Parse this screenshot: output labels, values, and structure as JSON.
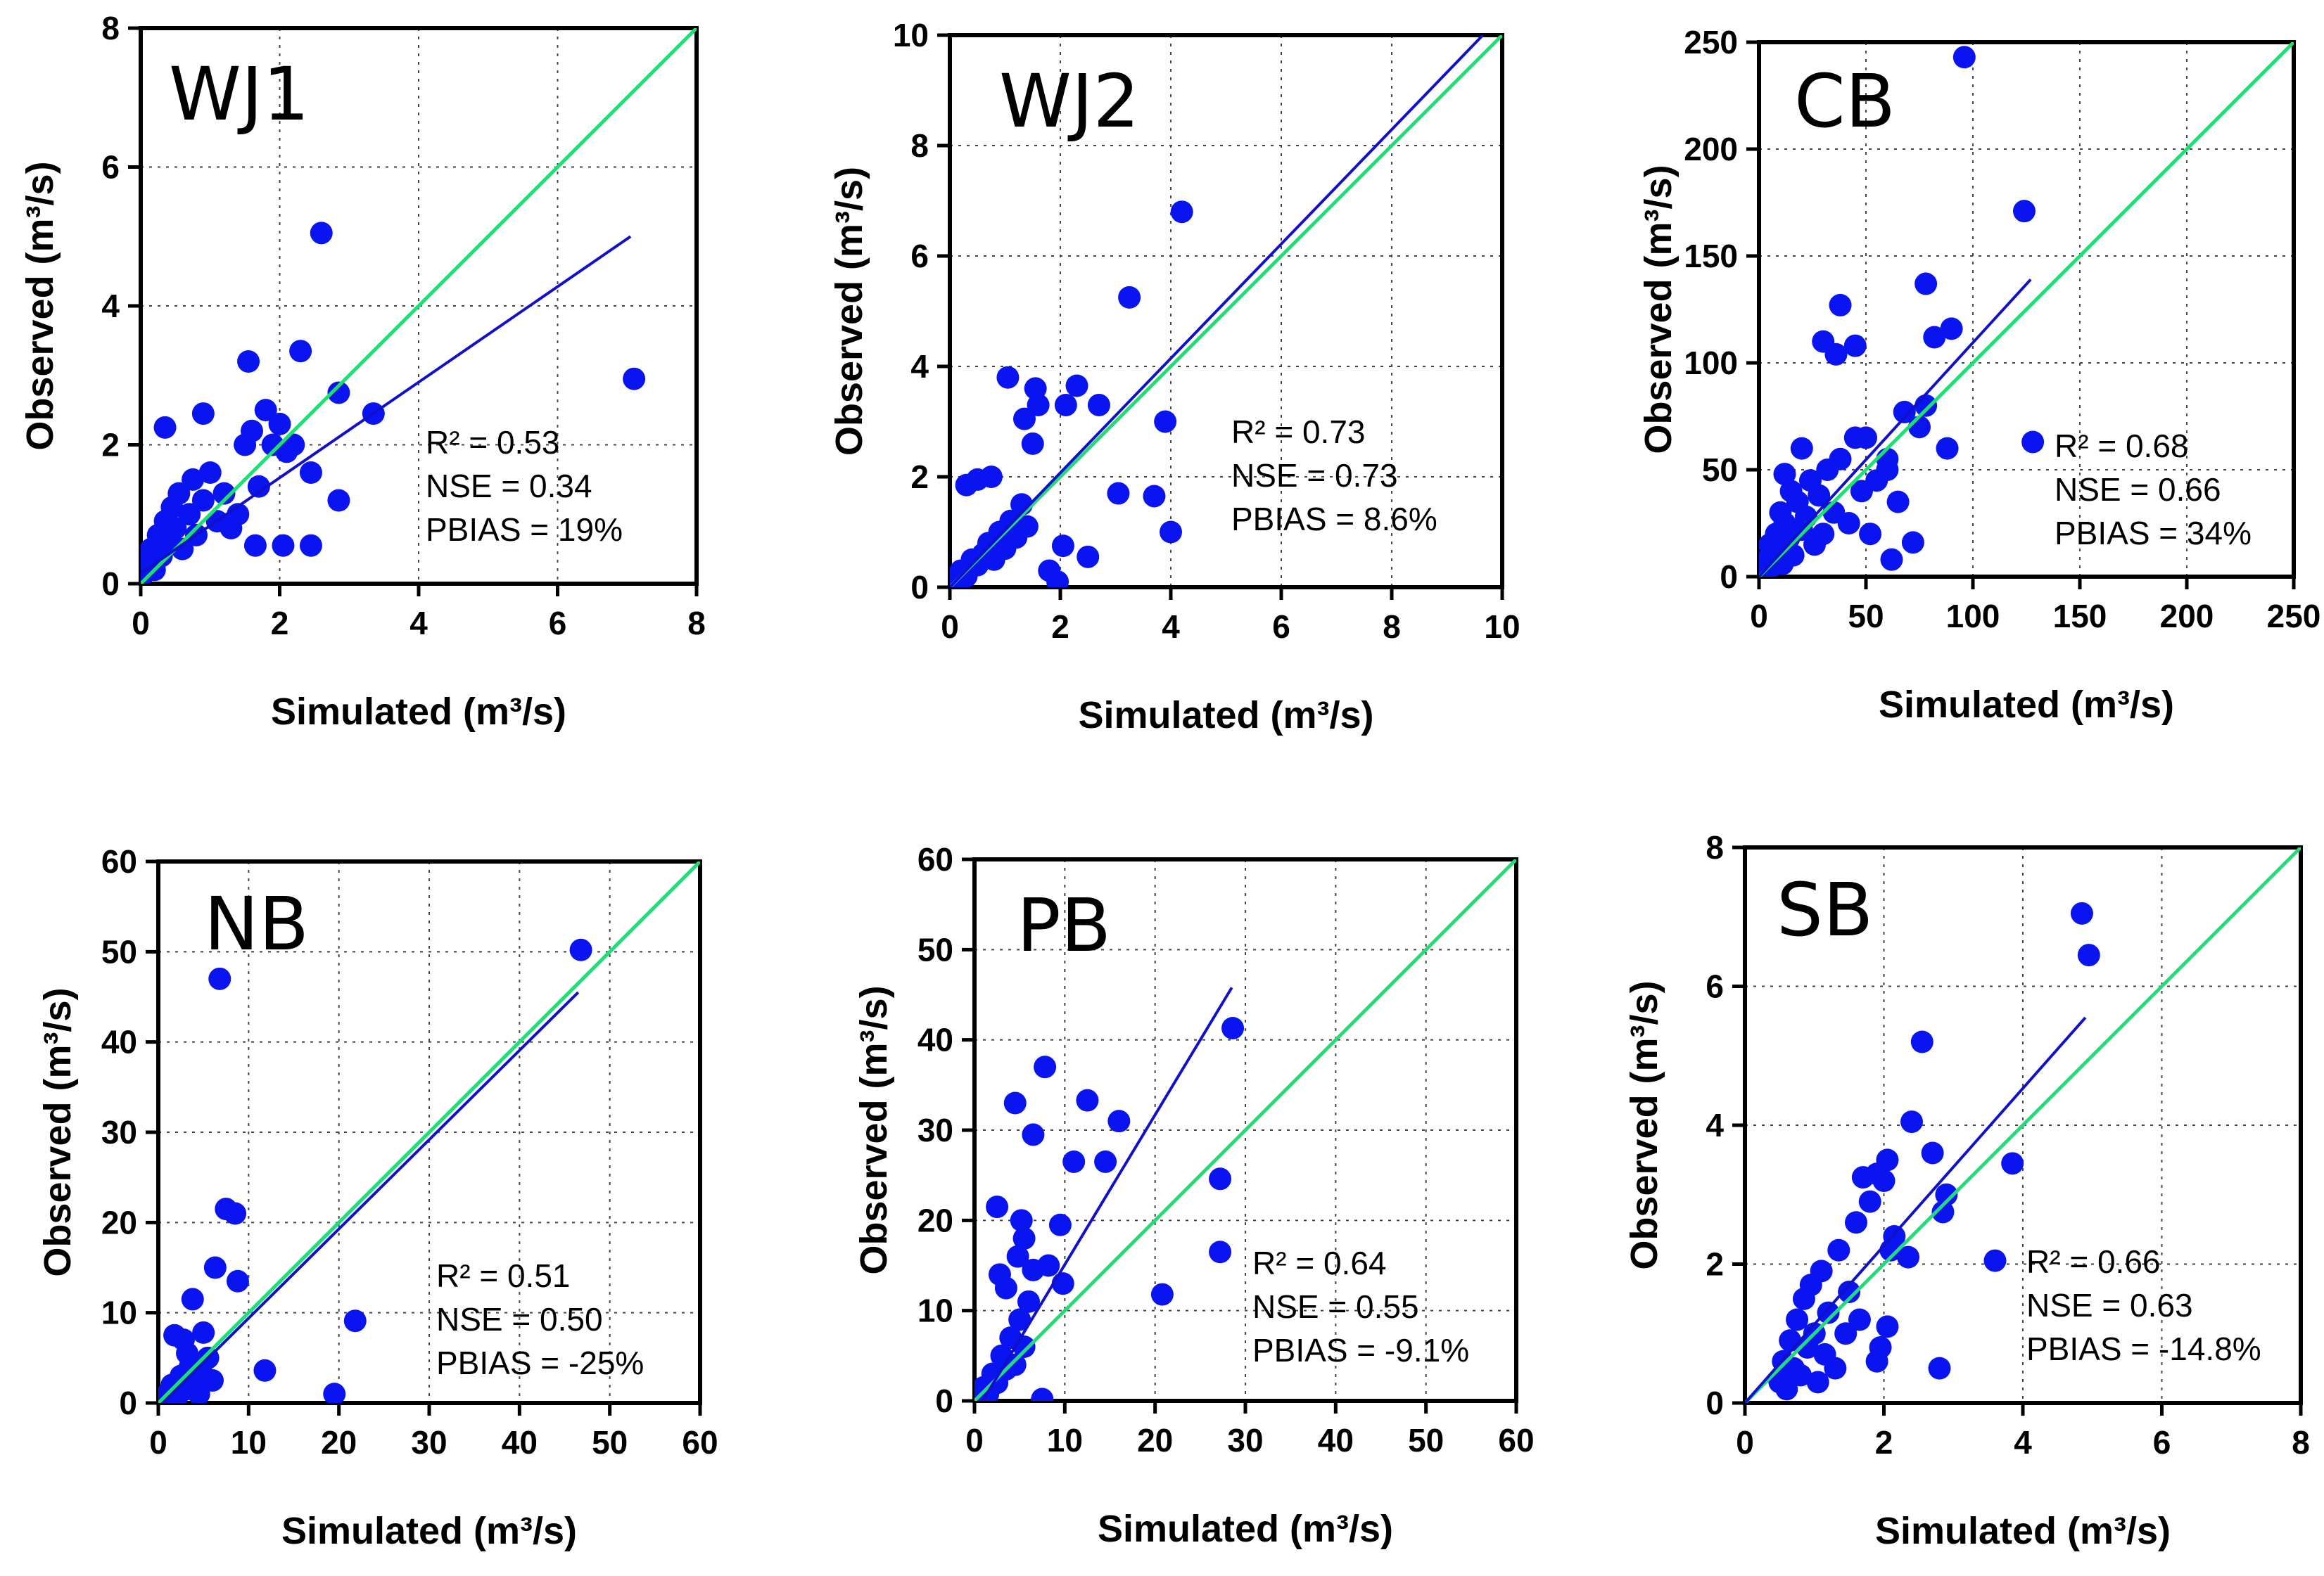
{
  "chart_data": [
    {
      "type": "scatter",
      "title": "WJ1",
      "xlabel": "Simulated (m³/s)",
      "ylabel": "Observed (m³/s)",
      "xlim": [
        0,
        8
      ],
      "ylim": [
        0,
        8
      ],
      "xticks": [
        "0",
        "2",
        "4",
        "6",
        "8"
      ],
      "yticks": [
        "0",
        "2",
        "4",
        "6",
        "8"
      ],
      "grid": true,
      "stats": {
        "r2": "R² = 0.53",
        "nse": "NSE = 0.34",
        "pbias": "PBIAS = 19%"
      },
      "regression_line": [
        [
          0,
          0.15
        ],
        [
          7.05,
          5.0
        ]
      ],
      "one_to_one_line": [
        [
          0,
          0
        ],
        [
          8,
          8
        ]
      ],
      "points": [
        [
          0.05,
          0.15
        ],
        [
          0.1,
          0.3
        ],
        [
          0.15,
          0.5
        ],
        [
          0.2,
          0.2
        ],
        [
          0.25,
          0.7
        ],
        [
          0.3,
          0.4
        ],
        [
          0.35,
          0.9
        ],
        [
          0.4,
          0.6
        ],
        [
          0.45,
          1.1
        ],
        [
          0.5,
          0.8
        ],
        [
          0.55,
          1.3
        ],
        [
          0.6,
          0.5
        ],
        [
          0.7,
          1.0
        ],
        [
          0.75,
          1.5
        ],
        [
          0.8,
          0.7
        ],
        [
          0.9,
          1.2
        ],
        [
          1.0,
          1.6
        ],
        [
          1.1,
          0.9
        ],
        [
          1.2,
          1.3
        ],
        [
          1.3,
          0.8
        ],
        [
          1.4,
          1.0
        ],
        [
          1.5,
          2.0
        ],
        [
          1.6,
          2.2
        ],
        [
          1.7,
          1.4
        ],
        [
          1.8,
          2.5
        ],
        [
          1.9,
          2.0
        ],
        [
          2.0,
          2.3
        ],
        [
          2.1,
          1.9
        ],
        [
          2.2,
          2.0
        ],
        [
          0.35,
          2.25
        ],
        [
          0.9,
          2.45
        ],
        [
          1.55,
          3.2
        ],
        [
          2.3,
          3.35
        ],
        [
          2.6,
          5.05
        ],
        [
          1.65,
          0.55
        ],
        [
          2.05,
          0.55
        ],
        [
          2.45,
          0.55
        ],
        [
          2.45,
          1.6
        ],
        [
          2.85,
          1.2
        ],
        [
          2.85,
          2.75
        ],
        [
          3.35,
          2.45
        ],
        [
          7.1,
          2.95
        ]
      ]
    },
    {
      "type": "scatter",
      "title": "WJ2",
      "xlabel": "Simulated (m³/s)",
      "ylabel": "Observed (m³/s)",
      "xlim": [
        0,
        10
      ],
      "ylim": [
        0,
        10
      ],
      "xticks": [
        "0",
        "2",
        "4",
        "6",
        "8",
        "10"
      ],
      "yticks": [
        "0",
        "2",
        "4",
        "6",
        "8",
        "10"
      ],
      "grid": true,
      "stats": {
        "r2": "R² = 0.73",
        "nse": "NSE = 0.73",
        "pbias": "PBIAS = 8.6%"
      },
      "regression_line": [
        [
          0,
          0
        ],
        [
          9.65,
          10
        ]
      ],
      "one_to_one_line": [
        [
          0,
          0
        ],
        [
          10,
          10
        ]
      ],
      "points": [
        [
          0.1,
          0.1
        ],
        [
          0.2,
          0.3
        ],
        [
          0.3,
          0.2
        ],
        [
          0.4,
          0.5
        ],
        [
          0.5,
          0.4
        ],
        [
          0.6,
          0.6
        ],
        [
          0.7,
          0.8
        ],
        [
          0.8,
          0.5
        ],
        [
          0.9,
          1.0
        ],
        [
          1.0,
          0.7
        ],
        [
          1.1,
          1.2
        ],
        [
          1.2,
          0.9
        ],
        [
          1.3,
          1.5
        ],
        [
          1.4,
          1.1
        ],
        [
          0.3,
          1.85
        ],
        [
          0.5,
          1.95
        ],
        [
          0.75,
          2.0
        ],
        [
          1.05,
          3.8
        ],
        [
          1.35,
          3.05
        ],
        [
          1.5,
          2.6
        ],
        [
          1.55,
          3.6
        ],
        [
          1.6,
          3.3
        ],
        [
          2.1,
          3.3
        ],
        [
          2.3,
          3.65
        ],
        [
          2.7,
          3.3
        ],
        [
          2.05,
          0.75
        ],
        [
          1.8,
          0.3
        ],
        [
          1.95,
          0.1
        ],
        [
          2.5,
          0.55
        ],
        [
          3.05,
          1.7
        ],
        [
          3.25,
          5.25
        ],
        [
          3.7,
          1.65
        ],
        [
          3.9,
          3.0
        ],
        [
          4.0,
          1.0
        ],
        [
          4.2,
          6.8
        ]
      ]
    },
    {
      "type": "scatter",
      "title": "CB",
      "xlabel": "Simulated (m³/s)",
      "ylabel": "Observed (m³/s)",
      "xlim": [
        0,
        250
      ],
      "ylim": [
        0,
        250
      ],
      "xticks": [
        "0",
        "50",
        "100",
        "150",
        "200",
        "250"
      ],
      "yticks": [
        "0",
        "50",
        "100",
        "150",
        "200",
        "250"
      ],
      "grid": true,
      "stats": {
        "r2": "R² = 0.68",
        "nse": "NSE = 0.66",
        "pbias": "PBIAS = 34%"
      },
      "regression_line": [
        [
          0,
          0
        ],
        [
          127,
          139
        ]
      ],
      "one_to_one_line": [
        [
          0,
          0
        ],
        [
          250,
          250
        ]
      ],
      "points": [
        [
          2,
          3
        ],
        [
          4,
          8
        ],
        [
          5,
          15
        ],
        [
          6,
          5
        ],
        [
          8,
          20
        ],
        [
          9,
          12
        ],
        [
          10,
          30
        ],
        [
          11,
          6
        ],
        [
          12,
          25
        ],
        [
          14,
          18
        ],
        [
          15,
          40
        ],
        [
          16,
          10
        ],
        [
          18,
          35
        ],
        [
          20,
          22
        ],
        [
          22,
          28
        ],
        [
          24,
          45
        ],
        [
          26,
          15
        ],
        [
          28,
          38
        ],
        [
          30,
          20
        ],
        [
          32,
          50
        ],
        [
          35,
          30
        ],
        [
          38,
          55
        ],
        [
          42,
          25
        ],
        [
          45,
          65
        ],
        [
          48,
          40
        ],
        [
          52,
          20
        ],
        [
          55,
          45
        ],
        [
          60,
          50
        ],
        [
          65,
          35
        ],
        [
          12,
          48
        ],
        [
          20,
          60
        ],
        [
          38,
          127
        ],
        [
          30,
          110
        ],
        [
          36,
          104
        ],
        [
          45,
          108
        ],
        [
          50,
          65
        ],
        [
          60,
          55
        ],
        [
          62,
          8
        ],
        [
          68,
          77
        ],
        [
          72,
          16
        ],
        [
          75,
          70
        ],
        [
          78,
          80
        ],
        [
          78,
          137
        ],
        [
          82,
          112
        ],
        [
          90,
          116
        ],
        [
          88,
          60
        ],
        [
          96,
          243
        ],
        [
          124,
          171
        ],
        [
          128,
          63
        ]
      ]
    },
    {
      "type": "scatter",
      "title": "NB",
      "xlabel": "Simulated (m³/s)",
      "ylabel": "Observed (m³/s)",
      "xlim": [
        0,
        60
      ],
      "ylim": [
        0,
        60
      ],
      "xticks": [
        "0",
        "10",
        "20",
        "30",
        "40",
        "50",
        "60"
      ],
      "yticks": [
        "0",
        "10",
        "20",
        "30",
        "40",
        "50",
        "60"
      ],
      "grid": true,
      "stats": {
        "r2": "R² = 0.51",
        "nse": "NSE = 0.50",
        "pbias": "PBIAS = -25%"
      },
      "regression_line": [
        [
          0,
          -0.5
        ],
        [
          46.5,
          45.5
        ]
      ],
      "one_to_one_line": [
        [
          0,
          0
        ],
        [
          60,
          60
        ]
      ],
      "points": [
        [
          0.5,
          0.5
        ],
        [
          1,
          1
        ],
        [
          1.5,
          2
        ],
        [
          2,
          0.5
        ],
        [
          2.5,
          3
        ],
        [
          3,
          1.5
        ],
        [
          3.5,
          4
        ],
        [
          4,
          2
        ],
        [
          4.5,
          1
        ],
        [
          5,
          3
        ],
        [
          5.5,
          5
        ],
        [
          6,
          2.5
        ],
        [
          1.8,
          7.5
        ],
        [
          2.8,
          7
        ],
        [
          3.2,
          5.5
        ],
        [
          5,
          7.8
        ],
        [
          3.8,
          11.5
        ],
        [
          6.3,
          15
        ],
        [
          6.8,
          47
        ],
        [
          7.5,
          21.5
        ],
        [
          8.5,
          21
        ],
        [
          8.8,
          13.5
        ],
        [
          11.8,
          3.6
        ],
        [
          19.5,
          1
        ],
        [
          21.8,
          9.1
        ],
        [
          46.8,
          50.2
        ]
      ]
    },
    {
      "type": "scatter",
      "title": "PB",
      "xlabel": "Simulated (m³/s)",
      "ylabel": "Observed (m³/s)",
      "xlim": [
        0,
        60
      ],
      "ylim": [
        0,
        60
      ],
      "xticks": [
        "0",
        "10",
        "20",
        "30",
        "40",
        "50",
        "60"
      ],
      "yticks": [
        "0",
        "10",
        "20",
        "30",
        "40",
        "50",
        "60"
      ],
      "grid": true,
      "stats": {
        "r2": "R² = 0.64",
        "nse": "NSE = 0.55",
        "pbias": "PBIAS = -9.1%"
      },
      "regression_line": [
        [
          0,
          -1.5
        ],
        [
          28.5,
          45.8
        ]
      ],
      "one_to_one_line": [
        [
          0,
          0
        ],
        [
          60,
          60
        ]
      ],
      "points": [
        [
          0.5,
          0.5
        ],
        [
          1,
          1.5
        ],
        [
          1.5,
          0.8
        ],
        [
          2,
          3
        ],
        [
          2.5,
          2
        ],
        [
          3,
          5
        ],
        [
          3.5,
          3.5
        ],
        [
          4,
          7
        ],
        [
          4.5,
          4
        ],
        [
          5,
          9
        ],
        [
          5.5,
          6
        ],
        [
          6,
          11
        ],
        [
          2.8,
          14
        ],
        [
          3.5,
          12.5
        ],
        [
          4.8,
          16
        ],
        [
          5.2,
          20
        ],
        [
          5.5,
          18
        ],
        [
          6.5,
          14.5
        ],
        [
          4.5,
          33
        ],
        [
          2.5,
          21.5
        ],
        [
          6.5,
          29.5
        ],
        [
          7.8,
          37
        ],
        [
          8.2,
          15
        ],
        [
          9.5,
          19.5
        ],
        [
          9.8,
          13
        ],
        [
          11,
          26.5
        ],
        [
          12.5,
          33.3
        ],
        [
          14.5,
          26.5
        ],
        [
          16,
          31
        ],
        [
          7.5,
          0.2
        ],
        [
          20.8,
          11.8
        ],
        [
          27.2,
          16.5
        ],
        [
          27.2,
          24.6
        ],
        [
          28.6,
          41.3
        ]
      ]
    },
    {
      "type": "scatter",
      "title": "SB",
      "xlabel": "Simulated (m³/s)",
      "ylabel": "Observed (m³/s)",
      "xlim": [
        0,
        8
      ],
      "ylim": [
        0,
        8
      ],
      "xticks": [
        "0",
        "2",
        "4",
        "6",
        "8"
      ],
      "yticks": [
        "0",
        "2",
        "4",
        "6",
        "8"
      ],
      "grid": true,
      "stats": {
        "r2": "R² = 0.66",
        "nse": "NSE = 0.63",
        "pbias": "PBIAS = -14.8%"
      },
      "regression_line": [
        [
          0,
          0
        ],
        [
          4.9,
          5.55
        ]
      ],
      "one_to_one_line": [
        [
          0,
          0
        ],
        [
          8,
          8
        ]
      ],
      "points": [
        [
          0.5,
          0.3
        ],
        [
          0.55,
          0.6
        ],
        [
          0.6,
          0.2
        ],
        [
          0.65,
          0.9
        ],
        [
          0.7,
          0.5
        ],
        [
          0.75,
          1.2
        ],
        [
          0.8,
          0.4
        ],
        [
          0.85,
          1.5
        ],
        [
          0.9,
          0.8
        ],
        [
          0.95,
          1.7
        ],
        [
          1.0,
          1.0
        ],
        [
          1.05,
          0.3
        ],
        [
          1.1,
          1.9
        ],
        [
          1.15,
          0.7
        ],
        [
          1.2,
          1.3
        ],
        [
          1.3,
          0.5
        ],
        [
          1.35,
          2.2
        ],
        [
          1.45,
          1.0
        ],
        [
          1.5,
          1.6
        ],
        [
          1.6,
          2.6
        ],
        [
          1.65,
          1.2
        ],
        [
          1.7,
          3.25
        ],
        [
          1.8,
          2.9
        ],
        [
          1.9,
          3.3
        ],
        [
          2.0,
          3.2
        ],
        [
          2.05,
          3.5
        ],
        [
          2.1,
          2.2
        ],
        [
          1.9,
          0.6
        ],
        [
          1.95,
          0.8
        ],
        [
          2.05,
          1.1
        ],
        [
          2.15,
          2.4
        ],
        [
          2.35,
          2.1
        ],
        [
          2.4,
          4.05
        ],
        [
          2.55,
          5.2
        ],
        [
          2.7,
          3.6
        ],
        [
          2.8,
          0.5
        ],
        [
          2.85,
          2.75
        ],
        [
          2.9,
          3.0
        ],
        [
          3.6,
          2.05
        ],
        [
          3.85,
          3.45
        ],
        [
          4.85,
          7.05
        ],
        [
          4.95,
          6.45
        ]
      ]
    }
  ]
}
